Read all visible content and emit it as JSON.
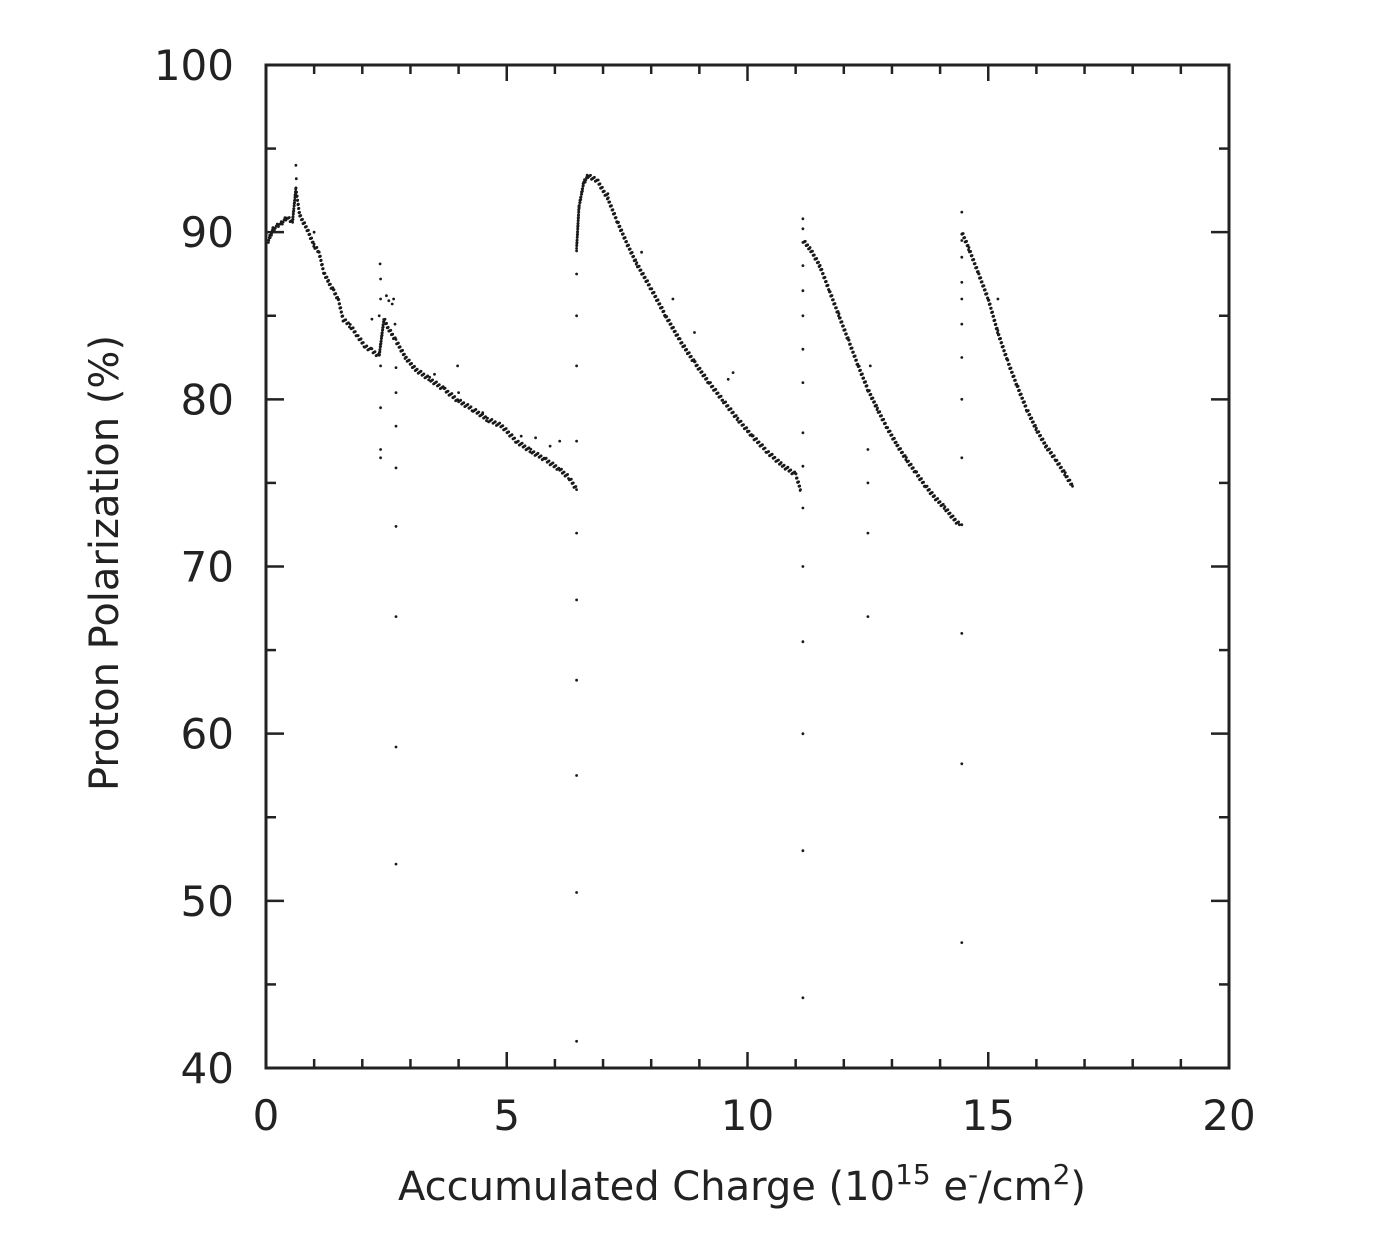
{
  "chart_data": {
    "type": "scatter",
    "xlabel": {
      "prefix": "Accumulated Charge (10",
      "sup1": "15",
      "mid": " e",
      "sup2": "-",
      "mid2": "/cm",
      "sup3": "2",
      "suffix": ")"
    },
    "ylabel": "Proton Polarization (%)",
    "xlim": [
      0,
      20
    ],
    "ylim": [
      40,
      100
    ],
    "x_ticks": [
      "0",
      "5",
      "10",
      "15",
      "20"
    ],
    "y_ticks": [
      "40",
      "50",
      "60",
      "70",
      "80",
      "90",
      "100"
    ],
    "grid": false,
    "marker_color": "#1a1a1a",
    "series": [
      {
        "segments": [
          {
            "main": [
              [
                0.05,
                89.5
              ],
              [
                0.15,
                90.2
              ],
              [
                0.3,
                90.5
              ],
              [
                0.45,
                90.9
              ],
              [
                0.55,
                90.6
              ],
              [
                0.62,
                92.6
              ],
              [
                0.7,
                91.0
              ],
              [
                0.85,
                90.2
              ],
              [
                1.0,
                89.2
              ],
              [
                1.1,
                88.8
              ],
              [
                1.2,
                87.6
              ],
              [
                1.3,
                87.0
              ],
              [
                1.4,
                86.5
              ],
              [
                1.5,
                86.0
              ],
              [
                1.6,
                84.8
              ],
              [
                1.75,
                84.4
              ],
              [
                1.9,
                83.8
              ],
              [
                2.05,
                83.2
              ],
              [
                2.2,
                82.9
              ],
              [
                2.35,
                82.6
              ],
              [
                2.45,
                84.8
              ],
              [
                2.55,
                84.2
              ],
              [
                2.7,
                83.5
              ],
              [
                2.9,
                82.5
              ],
              [
                3.1,
                81.8
              ],
              [
                3.4,
                81.2
              ],
              [
                3.7,
                80.6
              ],
              [
                4.0,
                79.9
              ],
              [
                4.3,
                79.4
              ],
              [
                4.6,
                78.8
              ],
              [
                4.9,
                78.4
              ],
              [
                5.2,
                77.5
              ],
              [
                5.5,
                76.9
              ],
              [
                5.8,
                76.4
              ],
              [
                6.1,
                75.8
              ],
              [
                6.3,
                75.3
              ],
              [
                6.45,
                74.6
              ]
            ],
            "outliers": [
              [
                2.35,
                85.0
              ],
              [
                2.37,
                88.1
              ],
              [
                2.38,
                87.2
              ],
              [
                2.38,
                86.0
              ],
              [
                2.38,
                82.0
              ],
              [
                2.38,
                79.5
              ],
              [
                2.38,
                77.0
              ],
              [
                2.38,
                76.5
              ],
              [
                2.5,
                86.2
              ],
              [
                2.55,
                85.9
              ],
              [
                2.62,
                85.7
              ],
              [
                2.65,
                86.0
              ],
              [
                2.68,
                84.5
              ],
              [
                2.7,
                81.9
              ],
              [
                2.7,
                80.4
              ],
              [
                2.7,
                78.4
              ],
              [
                2.7,
                75.9
              ],
              [
                2.7,
                72.4
              ],
              [
                2.7,
                67.0
              ],
              [
                2.7,
                59.2
              ],
              [
                2.7,
                52.2
              ],
              [
                0.62,
                94.0
              ],
              [
                0.63,
                93.2
              ],
              [
                1.0,
                90.0
              ],
              [
                2.2,
                84.8
              ],
              [
                3.5,
                81.5
              ],
              [
                3.98,
                82.0
              ],
              [
                4.0,
                80.4
              ],
              [
                4.5,
                79.2
              ],
              [
                5.3,
                77.8
              ],
              [
                5.6,
                77.7
              ],
              [
                5.9,
                77.2
              ],
              [
                6.1,
                77.5
              ]
            ]
          },
          {
            "main": [
              [
                6.45,
                89.0
              ],
              [
                6.5,
                91.5
              ],
              [
                6.6,
                93.0
              ],
              [
                6.7,
                93.4
              ],
              [
                6.9,
                93.0
              ],
              [
                7.1,
                92.0
              ],
              [
                7.3,
                90.6
              ],
              [
                7.5,
                89.3
              ],
              [
                7.7,
                88.1
              ],
              [
                8.0,
                86.6
              ],
              [
                8.3,
                85.0
              ],
              [
                8.6,
                83.5
              ],
              [
                8.9,
                82.2
              ],
              [
                9.2,
                81.0
              ],
              [
                9.5,
                79.9
              ],
              [
                9.8,
                78.8
              ],
              [
                10.1,
                77.8
              ],
              [
                10.4,
                76.9
              ],
              [
                10.7,
                76.1
              ],
              [
                11.0,
                75.5
              ],
              [
                11.1,
                74.6
              ]
            ],
            "outliers": [
              [
                6.45,
                87.5
              ],
              [
                6.45,
                85.0
              ],
              [
                6.45,
                82.0
              ],
              [
                6.45,
                77.5
              ],
              [
                6.45,
                72.0
              ],
              [
                6.45,
                68.0
              ],
              [
                6.45,
                63.2
              ],
              [
                6.45,
                57.5
              ],
              [
                6.45,
                50.5
              ],
              [
                6.45,
                41.6
              ],
              [
                7.1,
                92.3
              ],
              [
                7.8,
                88.8
              ],
              [
                8.45,
                86.0
              ],
              [
                8.9,
                84.0
              ],
              [
                9.6,
                81.2
              ],
              [
                9.7,
                81.6
              ],
              [
                10.0,
                78.1
              ]
            ]
          },
          {
            "main": [
              [
                11.15,
                89.5
              ],
              [
                11.3,
                89.0
              ],
              [
                11.5,
                88.0
              ],
              [
                11.7,
                86.5
              ],
              [
                11.9,
                85.0
              ],
              [
                12.1,
                83.5
              ],
              [
                12.3,
                82.0
              ],
              [
                12.5,
                80.6
              ],
              [
                12.7,
                79.4
              ],
              [
                12.9,
                78.3
              ],
              [
                13.1,
                77.3
              ],
              [
                13.3,
                76.4
              ],
              [
                13.5,
                75.6
              ],
              [
                13.7,
                74.8
              ],
              [
                13.9,
                74.1
              ],
              [
                14.1,
                73.5
              ],
              [
                14.3,
                72.8
              ],
              [
                14.4,
                72.5
              ]
            ],
            "outliers": [
              [
                11.15,
                90.8
              ],
              [
                11.15,
                90.2
              ],
              [
                11.15,
                88.0
              ],
              [
                11.15,
                86.5
              ],
              [
                11.15,
                85.0
              ],
              [
                11.15,
                83.0
              ],
              [
                11.15,
                81.0
              ],
              [
                11.15,
                78.0
              ],
              [
                11.15,
                76.0
              ],
              [
                11.15,
                73.5
              ],
              [
                11.15,
                70.0
              ],
              [
                11.15,
                65.5
              ],
              [
                11.15,
                60.0
              ],
              [
                11.15,
                53.0
              ],
              [
                11.15,
                44.2
              ],
              [
                12.55,
                82.0
              ],
              [
                12.5,
                77.0
              ],
              [
                12.5,
                75.0
              ],
              [
                12.5,
                72.0
              ],
              [
                12.5,
                67.0
              ]
            ]
          },
          {
            "main": [
              [
                14.45,
                90.0
              ],
              [
                14.6,
                89.0
              ],
              [
                14.8,
                87.5
              ],
              [
                15.0,
                86.0
              ],
              [
                15.2,
                84.0
              ],
              [
                15.4,
                82.3
              ],
              [
                15.6,
                80.8
              ],
              [
                15.8,
                79.4
              ],
              [
                16.0,
                78.2
              ],
              [
                16.2,
                77.2
              ],
              [
                16.4,
                76.4
              ],
              [
                16.6,
                75.5
              ],
              [
                16.75,
                74.8
              ]
            ],
            "outliers": [
              [
                14.45,
                91.2
              ],
              [
                14.45,
                89.5
              ],
              [
                14.45,
                88.5
              ],
              [
                14.45,
                87.0
              ],
              [
                14.45,
                86.0
              ],
              [
                14.45,
                84.5
              ],
              [
                14.45,
                82.5
              ],
              [
                14.45,
                80.0
              ],
              [
                14.45,
                76.5
              ],
              [
                14.45,
                72.5
              ],
              [
                14.45,
                66.0
              ],
              [
                14.45,
                58.2
              ],
              [
                14.45,
                47.5
              ],
              [
                15.2,
                86.0
              ]
            ]
          }
        ]
      }
    ]
  }
}
